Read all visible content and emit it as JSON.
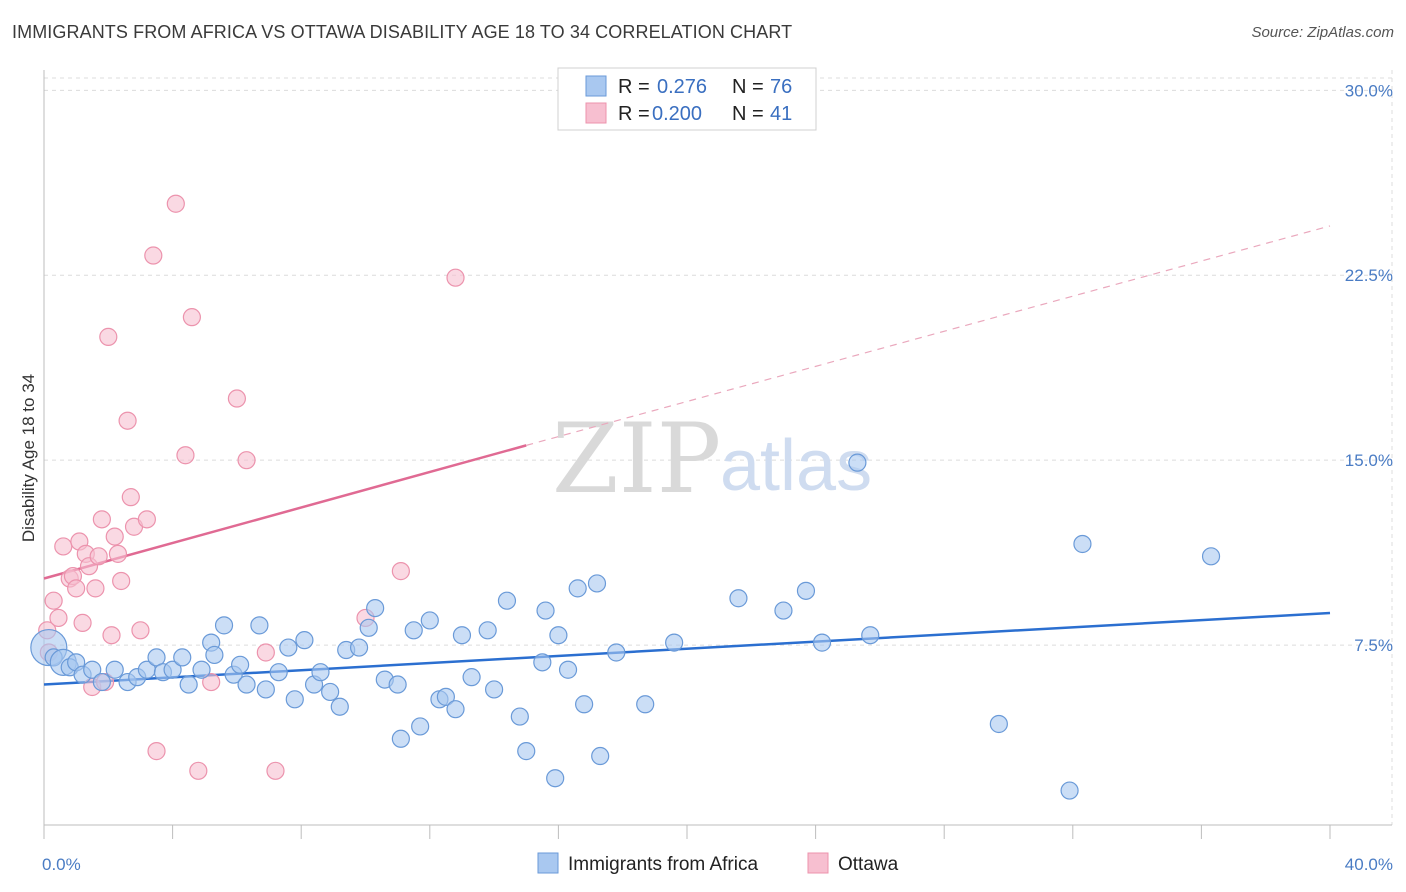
{
  "header": {
    "title": "IMMIGRANTS FROM AFRICA VS OTTAWA DISABILITY AGE 18 TO 34 CORRELATION CHART",
    "source": "Source: ZipAtlas.com"
  },
  "watermark": {
    "zip": "ZIP",
    "atlas": "atlas"
  },
  "legend": {
    "rows": [
      {
        "r_label": "R =",
        "r_value": "0.276",
        "n_label": "N =",
        "n_value": "76"
      },
      {
        "r_label": "R =",
        "r_value": "0.200",
        "n_label": "N =",
        "n_value": "41"
      }
    ]
  },
  "chart_data": {
    "type": "scatter",
    "title": "IMMIGRANTS FROM AFRICA VS OTTAWA DISABILITY AGE 18 TO 34 CORRELATION CHART",
    "xlabel": "",
    "ylabel": "Disability Age 18 to 34",
    "xlim": [
      0,
      40
    ],
    "ylim": [
      0,
      30.5
    ],
    "x_tick_labels": [
      {
        "value": 0,
        "label": "0.0%"
      },
      {
        "value": 40,
        "label": "40.0%"
      }
    ],
    "y_tick_labels": [
      {
        "value": 7.5,
        "label": "7.5%"
      },
      {
        "value": 15,
        "label": "15.0%"
      },
      {
        "value": 22.5,
        "label": "22.5%"
      },
      {
        "value": 30,
        "label": "30.0%"
      }
    ],
    "grid": true,
    "legend_position": "top-center",
    "colors": {
      "blue_fill": "#a9c8f0",
      "blue_stroke": "#6a9ad8",
      "blue_line": "#2b6fd0",
      "pink_fill": "#f7bfd0",
      "pink_stroke": "#ec93ad",
      "pink_line": "#e06a93"
    },
    "series": [
      {
        "name": "Immigrants from Africa",
        "color": "#a9c8f0",
        "trend": {
          "x0": 0,
          "y0": 5.9,
          "x1": 40,
          "y1": 8.8
        },
        "points": [
          [
            0.15,
            7.4
          ],
          [
            0.3,
            7.0
          ],
          [
            0.6,
            6.8
          ],
          [
            0.8,
            6.6
          ],
          [
            1.0,
            6.8
          ],
          [
            1.2,
            6.3
          ],
          [
            1.5,
            6.5
          ],
          [
            1.8,
            6.0
          ],
          [
            2.2,
            6.5
          ],
          [
            2.6,
            6.0
          ],
          [
            2.9,
            6.2
          ],
          [
            3.2,
            6.5
          ],
          [
            3.5,
            7.0
          ],
          [
            3.7,
            6.4
          ],
          [
            4.0,
            6.5
          ],
          [
            4.3,
            7.0
          ],
          [
            4.5,
            5.9
          ],
          [
            4.9,
            6.5
          ],
          [
            5.2,
            7.6
          ],
          [
            5.3,
            7.1
          ],
          [
            5.6,
            8.3
          ],
          [
            5.9,
            6.3
          ],
          [
            6.1,
            6.7
          ],
          [
            6.3,
            5.9
          ],
          [
            6.7,
            8.3
          ],
          [
            6.9,
            5.7
          ],
          [
            7.3,
            6.4
          ],
          [
            7.6,
            7.4
          ],
          [
            7.8,
            5.3
          ],
          [
            8.1,
            7.7
          ],
          [
            8.4,
            5.9
          ],
          [
            8.6,
            6.4
          ],
          [
            8.9,
            5.6
          ],
          [
            9.2,
            5.0
          ],
          [
            9.4,
            7.3
          ],
          [
            9.8,
            7.4
          ],
          [
            10.1,
            8.2
          ],
          [
            10.3,
            9.0
          ],
          [
            10.6,
            6.1
          ],
          [
            11.0,
            5.9
          ],
          [
            11.1,
            3.7
          ],
          [
            11.5,
            8.1
          ],
          [
            11.7,
            4.2
          ],
          [
            12.0,
            8.5
          ],
          [
            12.3,
            5.3
          ],
          [
            12.5,
            5.4
          ],
          [
            12.8,
            4.9
          ],
          [
            13.0,
            7.9
          ],
          [
            13.3,
            6.2
          ],
          [
            13.8,
            8.1
          ],
          [
            14.0,
            5.7
          ],
          [
            14.4,
            9.3
          ],
          [
            14.8,
            4.6
          ],
          [
            15.0,
            3.2
          ],
          [
            15.5,
            6.8
          ],
          [
            15.6,
            8.9
          ],
          [
            15.9,
            2.1
          ],
          [
            16.0,
            7.9
          ],
          [
            16.3,
            6.5
          ],
          [
            16.6,
            9.8
          ],
          [
            16.8,
            5.1
          ],
          [
            17.2,
            10.0
          ],
          [
            17.3,
            3.0
          ],
          [
            17.8,
            7.2
          ],
          [
            18.7,
            5.1
          ],
          [
            19.6,
            7.6
          ],
          [
            21.6,
            9.4
          ],
          [
            23.0,
            8.9
          ],
          [
            23.7,
            9.7
          ],
          [
            24.2,
            7.6
          ],
          [
            25.3,
            14.9
          ],
          [
            25.7,
            7.9
          ],
          [
            29.7,
            4.3
          ],
          [
            31.9,
            1.6
          ],
          [
            32.3,
            11.6
          ],
          [
            36.3,
            11.1
          ]
        ]
      },
      {
        "name": "Ottawa",
        "color": "#f7bfd0",
        "trend": {
          "x0": 0,
          "y0": 10.2,
          "x1": 15,
          "y1": 15.6,
          "dash_x1": 40,
          "dash_y1": 24.5
        },
        "points": [
          [
            0.1,
            8.1
          ],
          [
            0.15,
            7.2
          ],
          [
            0.3,
            9.3
          ],
          [
            0.45,
            8.6
          ],
          [
            0.6,
            11.5
          ],
          [
            0.8,
            10.2
          ],
          [
            0.9,
            10.3
          ],
          [
            1.0,
            9.8
          ],
          [
            1.1,
            11.7
          ],
          [
            1.2,
            8.4
          ],
          [
            1.3,
            11.2
          ],
          [
            1.4,
            10.7
          ],
          [
            1.5,
            5.8
          ],
          [
            1.6,
            9.8
          ],
          [
            1.7,
            11.1
          ],
          [
            1.8,
            12.6
          ],
          [
            1.9,
            6.0
          ],
          [
            2.0,
            20.0
          ],
          [
            2.1,
            7.9
          ],
          [
            2.2,
            11.9
          ],
          [
            2.3,
            11.2
          ],
          [
            2.4,
            10.1
          ],
          [
            2.6,
            16.6
          ],
          [
            2.7,
            13.5
          ],
          [
            2.8,
            12.3
          ],
          [
            3.0,
            8.1
          ],
          [
            3.2,
            12.6
          ],
          [
            3.4,
            23.3
          ],
          [
            3.5,
            3.2
          ],
          [
            4.1,
            25.4
          ],
          [
            4.4,
            15.2
          ],
          [
            4.6,
            20.8
          ],
          [
            4.8,
            2.4
          ],
          [
            5.2,
            6.0
          ],
          [
            6.0,
            17.5
          ],
          [
            6.3,
            15.0
          ],
          [
            6.9,
            7.2
          ],
          [
            7.2,
            2.4
          ],
          [
            10.0,
            8.6
          ],
          [
            11.1,
            10.5
          ],
          [
            12.8,
            22.4
          ]
        ]
      }
    ]
  }
}
